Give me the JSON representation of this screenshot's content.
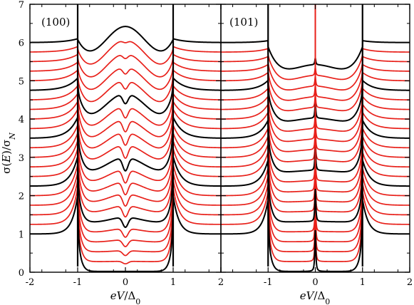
{
  "chart_data": {
    "type": "line",
    "ylabel": "σ(E)/σ_N",
    "xlabel": "eV/Δ_0",
    "xlim": [
      -2,
      2
    ],
    "ylim": [
      0,
      7
    ],
    "x_ticks": [
      "-2",
      "-1",
      "0",
      "1",
      "2"
    ],
    "y_ticks": [
      "0",
      "1",
      "2",
      "3",
      "4",
      "5",
      "6",
      "7"
    ],
    "grid": false,
    "colors": {
      "black": "#000000",
      "red": "#e8201a"
    },
    "note": "Each panel shows 21 conductance curves offset vertically by 0.25; every fifth curve (offsets 0, 1.25, 2.5, 3.75, 5 in σ units: baselines 0 through 5) is drawn in black, the rest in red.",
    "panels": [
      {
        "label": "(100)",
        "num_curves": 21,
        "offset_step": 0.25,
        "black_every": 5,
        "peak_values_at_zero_bias_black": [
          0.0,
          2.0,
          3.1,
          5.3,
          6.3
        ],
        "gap_edges": [
          -1,
          1
        ]
      },
      {
        "label": "(101)",
        "num_curves": 21,
        "offset_step": 0.25,
        "black_every": 5,
        "peak_values_at_zero_bias_black": [
          0.0,
          1.85,
          3.35,
          4.55,
          5.25
        ],
        "gap_edges": [
          -1,
          1
        ]
      }
    ]
  }
}
